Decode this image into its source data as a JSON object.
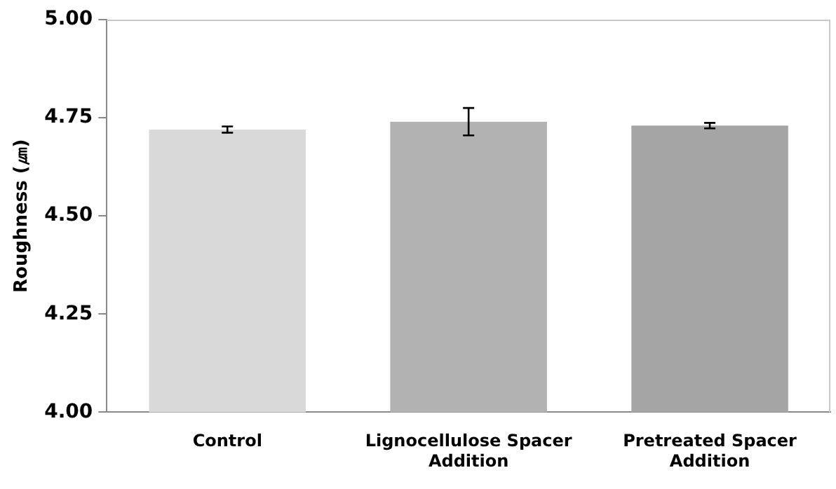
{
  "chart_data": {
    "type": "bar",
    "ylabel": "Roughness (㎛)",
    "categories": [
      "Control",
      "Lignocellulose Spacer Addition",
      "Pretreated Spacer Addition"
    ],
    "values": [
      4.72,
      4.74,
      4.73
    ],
    "colors": [
      "#d9d9d9",
      "#b2b2b2",
      "#a5a5a5"
    ],
    "errors": [
      0.008,
      0.035,
      0.007
    ],
    "ylim": [
      4.0,
      5.0
    ],
    "yticks": [
      {
        "value": 4.0,
        "label": "4.00"
      },
      {
        "value": 4.25,
        "label": "4.25"
      },
      {
        "value": 4.5,
        "label": "4.50"
      },
      {
        "value": 4.75,
        "label": "4.75"
      },
      {
        "value": 5.0,
        "label": "5.00"
      }
    ],
    "grid": false,
    "legend": false
  }
}
